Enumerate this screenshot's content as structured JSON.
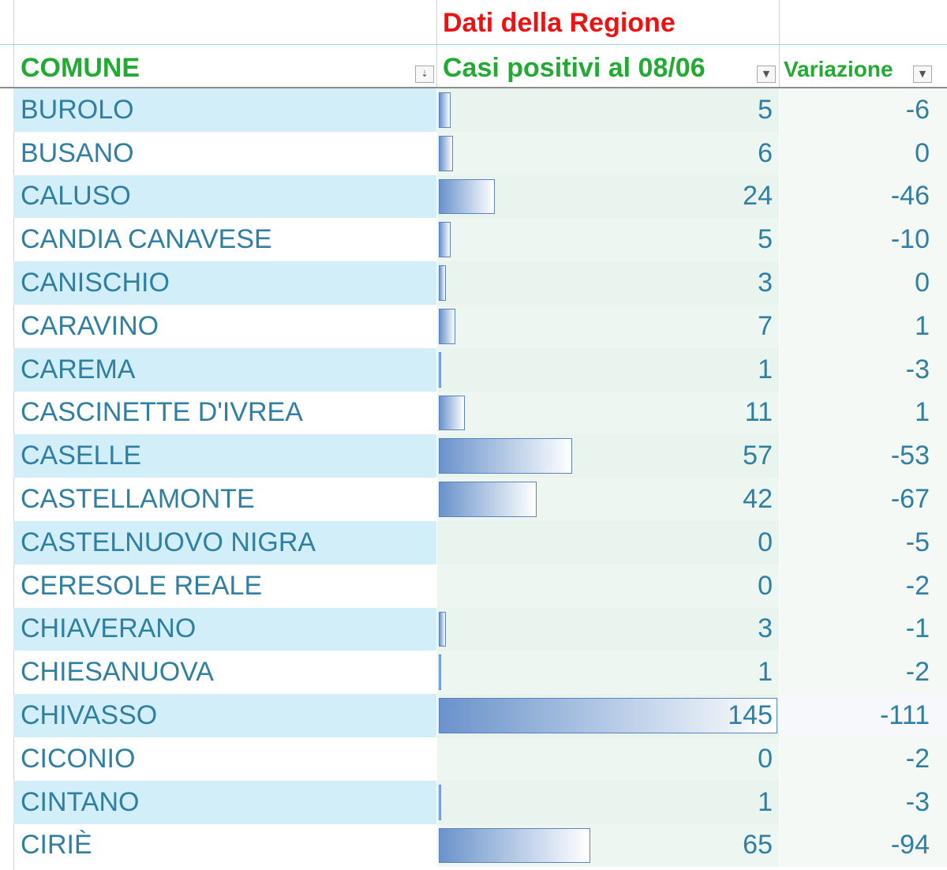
{
  "header": {
    "region_title": "Dati della Regione",
    "col_comune": "COMUNE",
    "col_casi": "Casi positivi al 08/06",
    "col_variazione": "Variazione",
    "filter_icons": {
      "comune": "sort-filter-icon",
      "casi": "dropdown-filter-icon",
      "variazione": "dropdown-filter-icon"
    }
  },
  "colors": {
    "region_title": "#ee1111",
    "column_title": "#22aa33",
    "cell_text": "#2f7fa3",
    "band": "#d2eef9",
    "data_bar": "#6a93cb"
  },
  "databar_max": 145,
  "rows": [
    {
      "comune": "BUROLO",
      "casi": "5",
      "variazione": "-6"
    },
    {
      "comune": "BUSANO",
      "casi": "6",
      "variazione": "0"
    },
    {
      "comune": "CALUSO",
      "casi": "24",
      "variazione": "-46"
    },
    {
      "comune": "CANDIA CANAVESE",
      "casi": "5",
      "variazione": "-10"
    },
    {
      "comune": "CANISCHIO",
      "casi": "3",
      "variazione": "0"
    },
    {
      "comune": "CARAVINO",
      "casi": "7",
      "variazione": "1"
    },
    {
      "comune": "CAREMA",
      "casi": "1",
      "variazione": "-3"
    },
    {
      "comune": "CASCINETTE D'IVREA",
      "casi": "11",
      "variazione": "1"
    },
    {
      "comune": "CASELLE",
      "casi": "57",
      "variazione": "-53"
    },
    {
      "comune": "CASTELLAMONTE",
      "casi": "42",
      "variazione": "-67"
    },
    {
      "comune": "CASTELNUOVO NIGRA",
      "casi": "0",
      "variazione": "-5"
    },
    {
      "comune": "CERESOLE REALE",
      "casi": "0",
      "variazione": "-2"
    },
    {
      "comune": "CHIAVERANO",
      "casi": "3",
      "variazione": "-1"
    },
    {
      "comune": "CHIESANUOVA",
      "casi": "1",
      "variazione": "-2"
    },
    {
      "comune": "CHIVASSO",
      "casi": "145",
      "variazione": "-111"
    },
    {
      "comune": "CICONIO",
      "casi": "0",
      "variazione": "-2"
    },
    {
      "comune": "CINTANO",
      "casi": "1",
      "variazione": "-3"
    },
    {
      "comune": "CIRIÈ",
      "casi": "65",
      "variazione": "-94"
    }
  ]
}
